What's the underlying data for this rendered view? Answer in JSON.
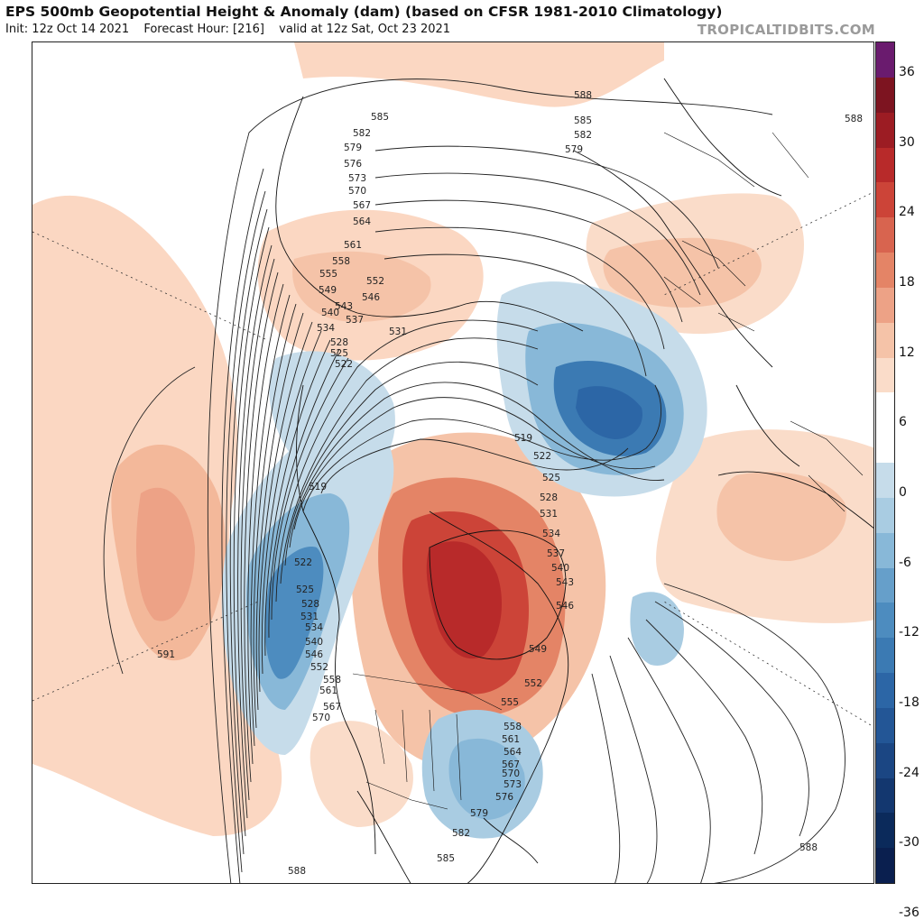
{
  "header": {
    "title": "EPS 500mb Geopotential Height & Anomaly (dam) (based on CFSR 1981-2010 Climatology)",
    "init": "Init: 12z Oct 14 2021",
    "forecast_hour": "Forecast Hour: [216]",
    "valid": "valid at 12z Sat, Oct 23 2021",
    "brand": "TROPICALTIDBITS.COM"
  },
  "colorbar": {
    "labels": [
      "36",
      "30",
      "24",
      "18",
      "12",
      "6",
      "0",
      "-6",
      "-12",
      "-18",
      "-24",
      "-30",
      "-36"
    ],
    "colors": [
      "#6a1b6e",
      "#7d1420",
      "#9c1c23",
      "#b82a2a",
      "#cc4438",
      "#d8644f",
      "#e48466",
      "#eda286",
      "#f5c3a8",
      "#fadcc9",
      "#ffffff",
      "#ffffff",
      "#c6dcea",
      "#a9cce2",
      "#88b8d8",
      "#669fca",
      "#4d8cbf",
      "#3b7ab3",
      "#2c66a6",
      "#235696",
      "#1b4683",
      "#13376f",
      "#0b2a5b",
      "#0a1f4f"
    ]
  },
  "map": {
    "projection": "polar stereographic, Northern Hemisphere",
    "contour_labels": [
      "585",
      "582",
      "579",
      "576",
      "573",
      "570",
      "567",
      "564",
      "561",
      "558",
      "555",
      "552",
      "549",
      "546",
      "543",
      "540",
      "537",
      "534",
      "531",
      "528",
      "525",
      "522",
      "519",
      "591",
      "588"
    ],
    "label_instances": [
      {
        "text": "588"
      },
      {
        "text": "585"
      },
      {
        "text": "582"
      },
      {
        "text": "579"
      },
      {
        "text": "588"
      },
      {
        "text": "585"
      },
      {
        "text": "582"
      },
      {
        "text": "579"
      },
      {
        "text": "576"
      },
      {
        "text": "573"
      },
      {
        "text": "570"
      },
      {
        "text": "567"
      },
      {
        "text": "564"
      },
      {
        "text": "561"
      },
      {
        "text": "558"
      },
      {
        "text": "555"
      },
      {
        "text": "552"
      },
      {
        "text": "549"
      },
      {
        "text": "546"
      },
      {
        "text": "543"
      },
      {
        "text": "540"
      },
      {
        "text": "537"
      },
      {
        "text": "534"
      },
      {
        "text": "531"
      },
      {
        "text": "528"
      },
      {
        "text": "525"
      },
      {
        "text": "522"
      },
      {
        "text": "519"
      },
      {
        "text": "519"
      },
      {
        "text": "522"
      },
      {
        "text": "525"
      },
      {
        "text": "528"
      },
      {
        "text": "531"
      },
      {
        "text": "534"
      },
      {
        "text": "537"
      },
      {
        "text": "540"
      },
      {
        "text": "543"
      },
      {
        "text": "546"
      },
      {
        "text": "549"
      },
      {
        "text": "552"
      },
      {
        "text": "522"
      },
      {
        "text": "525"
      },
      {
        "text": "528"
      },
      {
        "text": "531"
      },
      {
        "text": "534"
      },
      {
        "text": "540"
      },
      {
        "text": "546"
      },
      {
        "text": "552"
      },
      {
        "text": "558"
      },
      {
        "text": "561"
      },
      {
        "text": "567"
      },
      {
        "text": "570"
      },
      {
        "text": "555"
      },
      {
        "text": "558"
      },
      {
        "text": "561"
      },
      {
        "text": "564"
      },
      {
        "text": "567"
      },
      {
        "text": "570"
      },
      {
        "text": "573"
      },
      {
        "text": "576"
      },
      {
        "text": "579"
      },
      {
        "text": "582"
      },
      {
        "text": "585"
      },
      {
        "text": "588"
      },
      {
        "text": "591"
      },
      {
        "text": "588"
      }
    ]
  }
}
